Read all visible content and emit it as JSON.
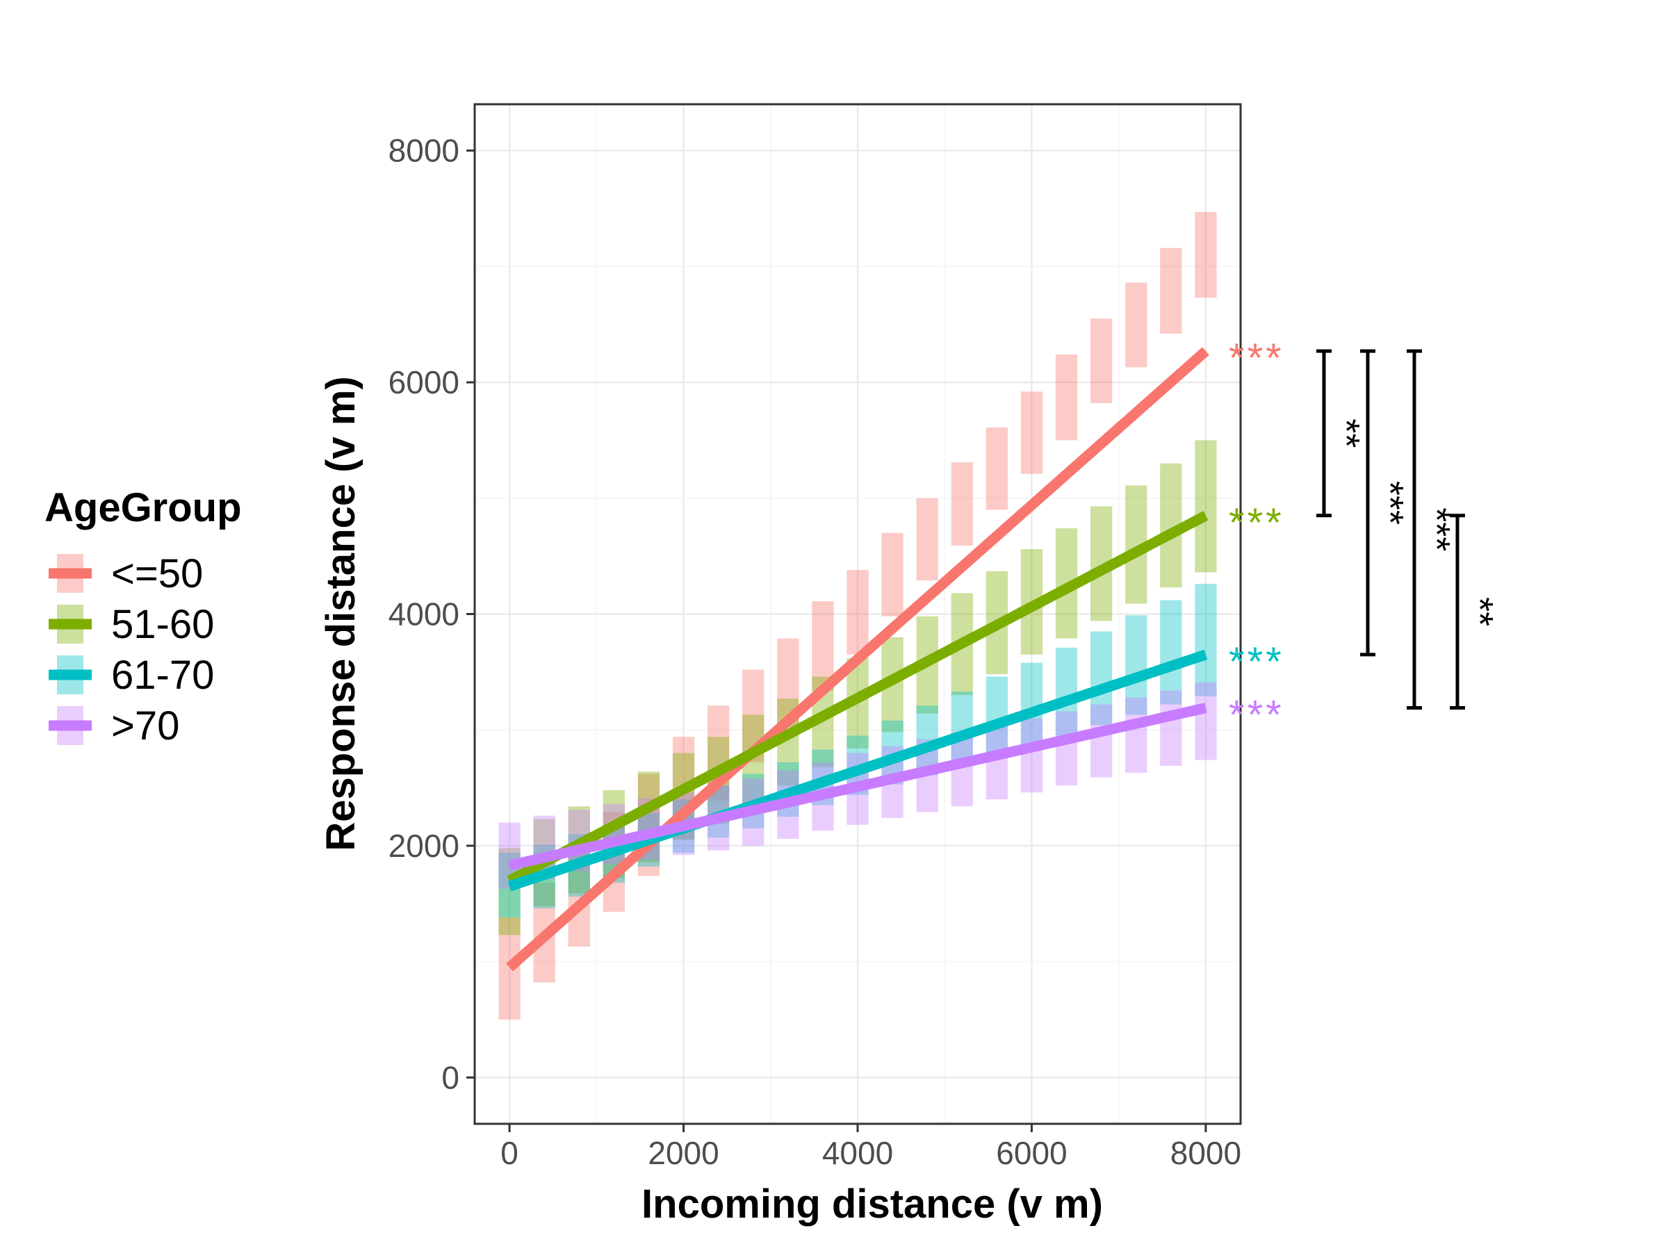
{
  "chart_data": {
    "type": "line",
    "xlabel": "Incoming distance (v m)",
    "ylabel": "Response distance (v m)",
    "xlim": [
      -400,
      8400
    ],
    "ylim": [
      -400,
      8400
    ],
    "x_ticks": [
      0,
      2000,
      4000,
      6000,
      8000
    ],
    "y_ticks": [
      0,
      2000,
      4000,
      6000,
      8000
    ],
    "grid": true,
    "legend": {
      "title": "AgeGroup",
      "position": "left"
    },
    "bin_width": 250,
    "series": [
      {
        "name": "<=50",
        "color": "#F8766D",
        "fit": [
          [
            0,
            950
          ],
          [
            8000,
            6270
          ]
        ],
        "bands": [
          [
            0,
            500,
            1380
          ],
          [
            400,
            820,
            1680
          ],
          [
            800,
            1130,
            1970
          ],
          [
            1200,
            1430,
            2290
          ],
          [
            1600,
            1740,
            2620
          ],
          [
            2000,
            2060,
            2940
          ],
          [
            2400,
            2390,
            3210
          ],
          [
            2800,
            2720,
            3520
          ],
          [
            3200,
            3030,
            3790
          ],
          [
            3600,
            3340,
            4110
          ],
          [
            4000,
            3650,
            4380
          ],
          [
            4400,
            3980,
            4700
          ],
          [
            4800,
            4290,
            5000
          ],
          [
            5200,
            4590,
            5310
          ],
          [
            5600,
            4900,
            5610
          ],
          [
            6000,
            5210,
            5920
          ],
          [
            6400,
            5500,
            6240
          ],
          [
            6800,
            5820,
            6550
          ],
          [
            7200,
            6130,
            6860
          ],
          [
            7600,
            6420,
            7160
          ],
          [
            8000,
            6730,
            7470
          ]
        ]
      },
      {
        "name": "51-60",
        "color": "#7CAE00",
        "fit": [
          [
            0,
            1700
          ],
          [
            8000,
            4850
          ]
        ],
        "bands": [
          [
            0,
            1230,
            1980
          ],
          [
            400,
            1480,
            2230
          ],
          [
            800,
            1590,
            2340
          ],
          [
            1200,
            1720,
            2480
          ],
          [
            1600,
            1860,
            2640
          ],
          [
            2000,
            2050,
            2800
          ],
          [
            2400,
            2190,
            2940
          ],
          [
            2800,
            2370,
            3130
          ],
          [
            3200,
            2520,
            3270
          ],
          [
            3600,
            2680,
            3460
          ],
          [
            4000,
            2840,
            3620
          ],
          [
            4400,
            2980,
            3800
          ],
          [
            4800,
            3140,
            3980
          ],
          [
            5200,
            3300,
            4180
          ],
          [
            5600,
            3480,
            4370
          ],
          [
            6000,
            3650,
            4560
          ],
          [
            6400,
            3790,
            4740
          ],
          [
            6800,
            3940,
            4930
          ],
          [
            7200,
            4090,
            5110
          ],
          [
            7600,
            4230,
            5300
          ],
          [
            8000,
            4360,
            5500
          ]
        ]
      },
      {
        "name": "61-70",
        "color": "#00BFC4",
        "fit": [
          [
            0,
            1650
          ],
          [
            8000,
            3650
          ]
        ],
        "bands": [
          [
            0,
            1380,
            1940
          ],
          [
            400,
            1460,
            2010
          ],
          [
            800,
            1560,
            2100
          ],
          [
            1200,
            1680,
            2180
          ],
          [
            1600,
            1820,
            2280
          ],
          [
            2000,
            1940,
            2400
          ],
          [
            2400,
            2070,
            2520
          ],
          [
            2800,
            2150,
            2620
          ],
          [
            3200,
            2250,
            2720
          ],
          [
            3600,
            2350,
            2830
          ],
          [
            4000,
            2440,
            2950
          ],
          [
            4400,
            2530,
            3080
          ],
          [
            4800,
            2610,
            3210
          ],
          [
            5200,
            2690,
            3330
          ],
          [
            5600,
            2780,
            3460
          ],
          [
            6000,
            2860,
            3580
          ],
          [
            6400,
            2950,
            3710
          ],
          [
            6800,
            3040,
            3850
          ],
          [
            7200,
            3130,
            3990
          ],
          [
            7600,
            3220,
            4120
          ],
          [
            8000,
            3290,
            4260
          ]
        ]
      },
      {
        "name": ">70",
        "color": "#C77CFF",
        "fit": [
          [
            0,
            1830
          ],
          [
            8000,
            3190
          ]
        ],
        "bands": [
          [
            0,
            1630,
            2200
          ],
          [
            400,
            1710,
            2260
          ],
          [
            800,
            1780,
            2310
          ],
          [
            1200,
            1840,
            2360
          ],
          [
            1600,
            1880,
            2410
          ],
          [
            2000,
            1920,
            2460
          ],
          [
            2400,
            1960,
            2520
          ],
          [
            2800,
            2000,
            2580
          ],
          [
            3200,
            2060,
            2650
          ],
          [
            3600,
            2130,
            2720
          ],
          [
            4000,
            2180,
            2800
          ],
          [
            4400,
            2240,
            2860
          ],
          [
            4800,
            2290,
            2920
          ],
          [
            5200,
            2340,
            2980
          ],
          [
            5600,
            2400,
            3040
          ],
          [
            6000,
            2460,
            3100
          ],
          [
            6400,
            2520,
            3160
          ],
          [
            6800,
            2590,
            3220
          ],
          [
            7200,
            2630,
            3280
          ],
          [
            7600,
            2690,
            3340
          ],
          [
            8000,
            2740,
            3410
          ]
        ]
      }
    ],
    "end_labels": [
      {
        "series": "<=50",
        "y": 6270,
        "text": "***"
      },
      {
        "series": "51-60",
        "y": 4850,
        "text": "***"
      },
      {
        "series": "61-70",
        "y": 3650,
        "text": "***"
      },
      {
        "series": ">70",
        "y": 3190,
        "text": "***"
      }
    ],
    "brackets": [
      {
        "from": 6270,
        "to": 4850,
        "text": "**"
      },
      {
        "from": 6270,
        "to": 3650,
        "text": "***"
      },
      {
        "from": 6270,
        "to": 3190,
        "text": "***"
      },
      {
        "from": 4850,
        "to": 3190,
        "text": "**"
      }
    ]
  }
}
